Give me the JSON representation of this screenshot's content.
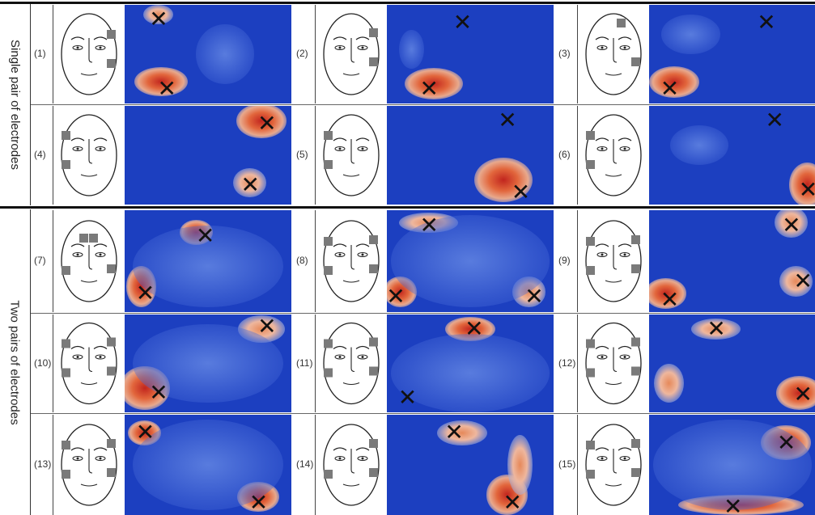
{
  "groups": [
    {
      "label": "Single pair of electrodes"
    },
    {
      "label": "Two pairs of electrodes"
    }
  ],
  "panels": [
    {
      "id": "(1)",
      "electrodes": [
        "rc1",
        "rc2"
      ],
      "x_marks": [
        [
          0.2,
          0.15
        ],
        [
          0.25,
          0.85
        ]
      ],
      "hot": [
        [
          0.2,
          0.1,
          0.18,
          0.2,
          "warm"
        ],
        [
          0.22,
          0.78,
          0.32,
          0.3,
          "hot"
        ],
        [
          0.6,
          0.5,
          0.35,
          0.6,
          "cool"
        ]
      ]
    },
    {
      "id": "(2)",
      "electrodes": [
        "rt",
        "rb"
      ],
      "x_marks": [
        [
          0.45,
          0.18
        ],
        [
          0.25,
          0.85
        ]
      ],
      "hot": [
        [
          0.28,
          0.8,
          0.35,
          0.32,
          "hot"
        ],
        [
          0.15,
          0.45,
          0.15,
          0.4,
          "cool"
        ]
      ]
    },
    {
      "id": "(3)",
      "electrodes": [
        "top",
        "rb"
      ],
      "x_marks": [
        [
          0.7,
          0.18
        ],
        [
          0.12,
          0.85
        ]
      ],
      "hot": [
        [
          0.15,
          0.78,
          0.3,
          0.32,
          "hot"
        ],
        [
          0.25,
          0.3,
          0.35,
          0.4,
          "cool"
        ]
      ]
    },
    {
      "id": "(4)",
      "electrodes": [
        "lt",
        "lb"
      ],
      "x_marks": [
        [
          0.85,
          0.18
        ],
        [
          0.75,
          0.8
        ]
      ],
      "hot": [
        [
          0.82,
          0.15,
          0.3,
          0.35,
          "hot"
        ],
        [
          0.75,
          0.78,
          0.2,
          0.3,
          "warm"
        ]
      ]
    },
    {
      "id": "(5)",
      "electrodes": [
        "lt",
        "lb"
      ],
      "x_marks": [
        [
          0.72,
          0.15
        ],
        [
          0.8,
          0.88
        ]
      ],
      "hot": [
        [
          0.7,
          0.75,
          0.35,
          0.45,
          "hot"
        ]
      ]
    },
    {
      "id": "(6)",
      "electrodes": [
        "lt",
        "lb"
      ],
      "x_marks": [
        [
          0.75,
          0.15
        ],
        [
          0.95,
          0.85
        ]
      ],
      "hot": [
        [
          0.95,
          0.8,
          0.22,
          0.45,
          "hot"
        ],
        [
          0.3,
          0.4,
          0.35,
          0.4,
          "cool"
        ]
      ]
    },
    {
      "id": "(7)",
      "electrodes": [
        "ft",
        "lb",
        "rb"
      ],
      "x_marks": [
        [
          0.48,
          0.25
        ],
        [
          0.12,
          0.82
        ]
      ],
      "hot": [
        [
          0.43,
          0.22,
          0.2,
          0.25,
          "hot"
        ],
        [
          0.1,
          0.75,
          0.18,
          0.4,
          "hot"
        ],
        [
          0.5,
          0.55,
          0.9,
          0.8,
          "cool"
        ]
      ]
    },
    {
      "id": "(8)",
      "electrodes": [
        "lt",
        "rt",
        "lb",
        "rb"
      ],
      "x_marks": [
        [
          0.25,
          0.15
        ],
        [
          0.05,
          0.85
        ],
        [
          0.88,
          0.85
        ]
      ],
      "hot": [
        [
          0.25,
          0.12,
          0.35,
          0.2,
          "warm"
        ],
        [
          0.08,
          0.8,
          0.2,
          0.3,
          "hot"
        ],
        [
          0.85,
          0.8,
          0.2,
          0.3,
          "warm"
        ],
        [
          0.5,
          0.5,
          0.95,
          0.9,
          "cool"
        ]
      ]
    },
    {
      "id": "(9)",
      "electrodes": [
        "lt",
        "rt",
        "lb",
        "rb"
      ],
      "x_marks": [
        [
          0.85,
          0.15
        ],
        [
          0.12,
          0.88
        ],
        [
          0.92,
          0.7
        ]
      ],
      "hot": [
        [
          0.85,
          0.12,
          0.2,
          0.3,
          "warm"
        ],
        [
          0.1,
          0.82,
          0.25,
          0.3,
          "hot"
        ],
        [
          0.88,
          0.7,
          0.2,
          0.3,
          "warm"
        ]
      ]
    },
    {
      "id": "(10)",
      "electrodes": [
        "lt",
        "rt",
        "lb",
        "rb"
      ],
      "x_marks": [
        [
          0.85,
          0.12
        ],
        [
          0.2,
          0.8
        ]
      ],
      "hot": [
        [
          0.82,
          0.15,
          0.28,
          0.28,
          "warm"
        ],
        [
          0.12,
          0.75,
          0.3,
          0.45,
          "hot"
        ],
        [
          0.5,
          0.5,
          0.9,
          0.8,
          "cool"
        ]
      ]
    },
    {
      "id": "(11)",
      "electrodes": [
        "lt",
        "rt",
        "lb",
        "rb"
      ],
      "x_marks": [
        [
          0.52,
          0.15
        ],
        [
          0.12,
          0.85
        ]
      ],
      "hot": [
        [
          0.5,
          0.15,
          0.3,
          0.25,
          "hot"
        ],
        [
          0.5,
          0.6,
          0.95,
          0.8,
          "cool"
        ]
      ]
    },
    {
      "id": "(12)",
      "electrodes": [
        "lt",
        "rt",
        "lb",
        "rb"
      ],
      "x_marks": [
        [
          0.4,
          0.15
        ],
        [
          0.92,
          0.82
        ]
      ],
      "hot": [
        [
          0.4,
          0.15,
          0.3,
          0.22,
          "warm"
        ],
        [
          0.9,
          0.8,
          0.28,
          0.35,
          "hot"
        ],
        [
          0.12,
          0.7,
          0.18,
          0.4,
          "warm"
        ]
      ]
    },
    {
      "id": "(13)",
      "electrodes": [
        "lt",
        "rt",
        "lb",
        "rb"
      ],
      "x_marks": [
        [
          0.12,
          0.18
        ],
        [
          0.8,
          0.88
        ]
      ],
      "hot": [
        [
          0.12,
          0.18,
          0.2,
          0.25,
          "hot"
        ],
        [
          0.8,
          0.82,
          0.25,
          0.3,
          "hot"
        ],
        [
          0.5,
          0.5,
          0.9,
          0.9,
          "cool"
        ]
      ]
    },
    {
      "id": "(14)",
      "electrodes": [
        "rt",
        "rb",
        "lb"
      ],
      "x_marks": [
        [
          0.4,
          0.18
        ],
        [
          0.75,
          0.88
        ]
      ],
      "hot": [
        [
          0.45,
          0.18,
          0.3,
          0.25,
          "warm"
        ],
        [
          0.72,
          0.8,
          0.25,
          0.4,
          "hot"
        ],
        [
          0.8,
          0.5,
          0.15,
          0.6,
          "warm"
        ]
      ]
    },
    {
      "id": "(15)",
      "electrodes": [
        "lt",
        "rt",
        "lb",
        "rb"
      ],
      "x_marks": [
        [
          0.82,
          0.28
        ],
        [
          0.5,
          0.92
        ]
      ],
      "hot": [
        [
          0.82,
          0.28,
          0.3,
          0.35,
          "hot"
        ],
        [
          0.55,
          0.9,
          0.75,
          0.2,
          "hot"
        ],
        [
          0.5,
          0.5,
          0.95,
          0.9,
          "cool"
        ]
      ]
    }
  ]
}
